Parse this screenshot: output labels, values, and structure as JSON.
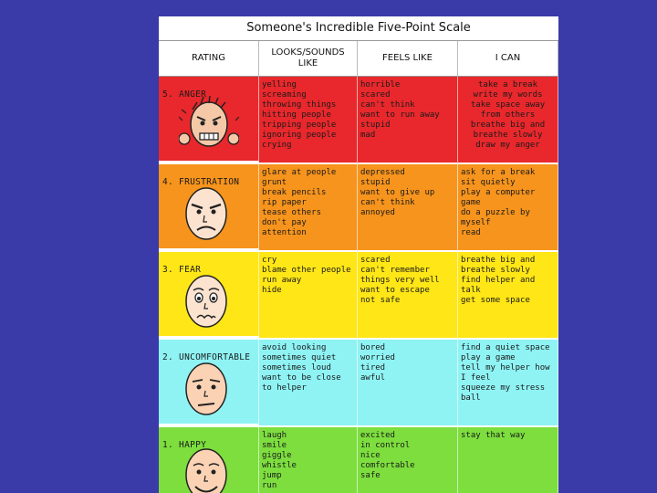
{
  "title": "Someone's Incredible Five-Point Scale",
  "headers": [
    "RATING",
    "LOOKS/SOUNDS\nLIKE",
    "FEELS LIKE",
    "I CAN"
  ],
  "rows": [
    {
      "rating": "5.  ANGER",
      "looks": "yelling\nscreaming\nthrowing things\nhitting people\ntripping people\nignoring people\ncrying",
      "feels": "horrible\nscared\ncan't think\nwant to run away\nstupid\nmad",
      "can": "take a break\nwrite my words\ntake space away\n   from others\nbreathe big and\n   breathe slowly\ndraw my anger",
      "color": "#e8282c",
      "face": "angry-face-icon"
    },
    {
      "rating": "4.  FRUSTRATION",
      "looks": "glare at people\ngrunt\nbreak pencils\nrip paper\ntease others\ndon't pay attention",
      "feels": "depressed\nstupid\nwant to give up\ncan't think\nannoyed",
      "can": "ask for a break\nsit quietly\nplay a computer\n   game\ndo a puzzle by\n   myself\nread",
      "color": "#f7941d",
      "face": "frustrated-face-icon"
    },
    {
      "rating": "3.  FEAR",
      "looks": "cry\nblame other people\nrun away\nhide",
      "feels": "scared\ncan't remember\n   things very well\nwant to escape\nnot safe",
      "can": "breathe big and\n   breathe slowly\nfind helper and talk\nget some space",
      "color": "#ffe617",
      "face": "scared-face-icon"
    },
    {
      "rating": "2.  UNCOMFORTABLE",
      "looks": "avoid looking\nsometimes quiet\nsometimes loud\nwant to be close\n   to helper",
      "feels": "bored\nworried\ntired\nawful",
      "can": "find a quiet space\nplay a game\ntell my helper how\n   I feel\nsqueeze my stress\n   ball",
      "color": "#8ff3f4",
      "face": "uncomfortable-face-icon"
    },
    {
      "rating": "1.  HAPPY",
      "looks": "laugh\nsmile\ngiggle\nwhistle\njump\nrun",
      "feels": "excited\nin control\nnice\ncomfortable\nsafe",
      "can": "stay that way",
      "color": "#7dde3e",
      "face": "happy-face-icon"
    }
  ]
}
